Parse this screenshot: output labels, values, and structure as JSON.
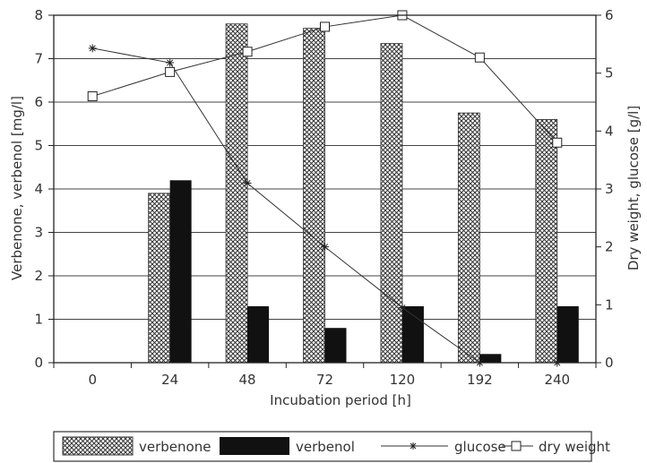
{
  "chart_data": {
    "type": "bar",
    "categories": [
      "0",
      "24",
      "48",
      "72",
      "120",
      "192",
      "240"
    ],
    "xlabel": "Incubation period [h]",
    "ylabel": "Verbenone, verbenol [mg/l]",
    "ylabel_right": "Dry weight, glucose [g/l]",
    "ylim": [
      0,
      8
    ],
    "ylim_right": [
      0,
      6
    ],
    "yticks": [
      "0",
      "1",
      "2",
      "3",
      "4",
      "5",
      "6",
      "7",
      "8"
    ],
    "yticks_right": [
      "0",
      "1",
      "2",
      "3",
      "4",
      "5",
      "6"
    ],
    "grid": "horizontal",
    "legend_position": "bottom",
    "series": [
      {
        "name": "verbenone",
        "type": "bar",
        "axis": "left",
        "pattern": "crosshatch",
        "values": [
          null,
          3.9,
          7.8,
          7.7,
          7.35,
          5.75,
          5.6
        ]
      },
      {
        "name": "verbenol",
        "type": "bar",
        "axis": "left",
        "pattern": "solid",
        "values": [
          null,
          4.2,
          1.3,
          0.8,
          1.3,
          0.2,
          1.3
        ]
      },
      {
        "name": "glucose",
        "type": "line",
        "axis": "right",
        "marker": "asterisk",
        "values": [
          5.43,
          5.18,
          3.1,
          2.0,
          0.95,
          0.0,
          0.0
        ]
      },
      {
        "name": "dry weight",
        "type": "line",
        "axis": "right",
        "marker": "square",
        "values": [
          4.6,
          5.02,
          5.37,
          5.8,
          6.0,
          5.27,
          3.8
        ]
      }
    ]
  }
}
